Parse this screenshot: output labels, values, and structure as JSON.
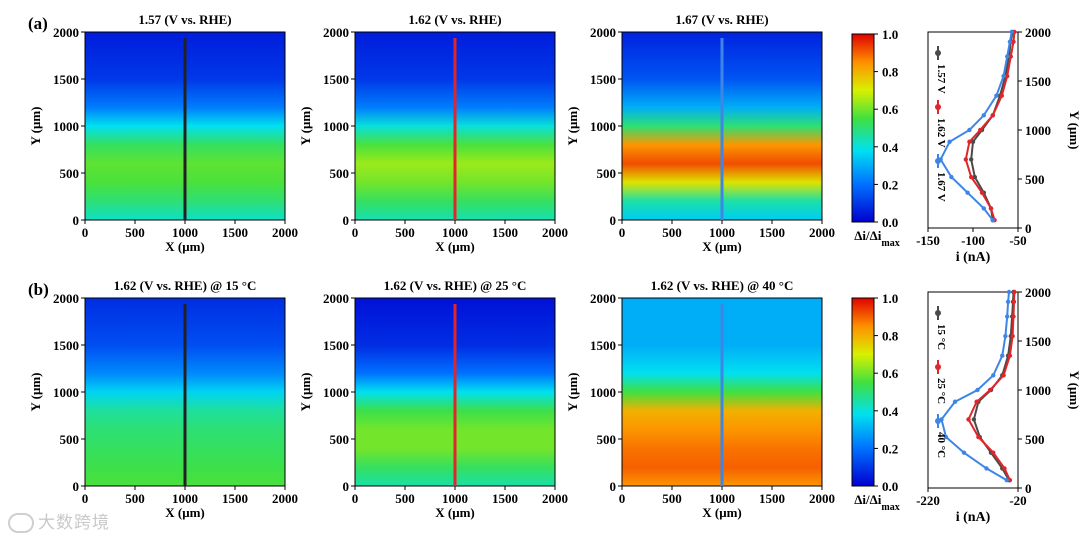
{
  "figure": {
    "watermark": "大数跨境",
    "map_panels": [
      {
        "label": "(a)",
        "title": "1.57 (V vs. RHE)",
        "line_color": "#222222"
      },
      {
        "title": "1.62 (V vs. RHE)",
        "line_color": "#e0262a"
      },
      {
        "title": "1.67 (V vs. RHE)",
        "line_color": "#3e86e6"
      },
      {
        "label": "(b)",
        "title": "1.62 (V vs. RHE) @ 15 °C",
        "line_color": "#222222"
      },
      {
        "title": "1.62 (V vs. RHE) @ 25 °C",
        "line_color": "#e0262a"
      },
      {
        "title": "1.62 (V vs. RHE) @ 40 °C",
        "line_color": "#3e86e6"
      }
    ],
    "colorbar": {
      "ticks": [
        "0.0",
        "0.2",
        "0.4",
        "0.6",
        "0.8",
        "1.0"
      ],
      "label": "Δi/Δi",
      "label_sub": "max"
    }
  },
  "chart_data": [
    {
      "type": "heatmap",
      "title": "1.57 (V vs. RHE)",
      "xlabel": "X (μm)",
      "ylabel": "Y (μm)",
      "xlim": [
        0,
        2000
      ],
      "ylim": [
        0,
        2000
      ],
      "xticks": [
        0,
        500,
        1000,
        1500,
        2000
      ],
      "yticks": [
        0,
        500,
        1000,
        1500,
        2000
      ],
      "profile_line_x": 1000,
      "mean_profile": {
        "y": [
          0,
          200,
          400,
          600,
          800,
          1000,
          1200,
          1500,
          2000
        ],
        "value": [
          0.42,
          0.5,
          0.56,
          0.58,
          0.52,
          0.38,
          0.22,
          0.1,
          0.05
        ]
      }
    },
    {
      "type": "heatmap",
      "title": "1.62 (V vs. RHE)",
      "xlabel": "X (μm)",
      "ylabel": "Y (μm)",
      "xlim": [
        0,
        2000
      ],
      "ylim": [
        0,
        2000
      ],
      "xticks": [
        0,
        500,
        1000,
        1500,
        2000
      ],
      "yticks": [
        0,
        500,
        1000,
        1500,
        2000
      ],
      "profile_line_x": 1000,
      "mean_profile": {
        "y": [
          0,
          200,
          400,
          600,
          800,
          1000,
          1200,
          1500,
          2000
        ],
        "value": [
          0.44,
          0.52,
          0.6,
          0.64,
          0.56,
          0.4,
          0.22,
          0.1,
          0.05
        ]
      }
    },
    {
      "type": "heatmap",
      "title": "1.67 (V vs. RHE)",
      "xlabel": "X (μm)",
      "ylabel": "Y (μm)",
      "xlim": [
        0,
        2000
      ],
      "ylim": [
        0,
        2000
      ],
      "xticks": [
        0,
        500,
        1000,
        1500,
        2000
      ],
      "yticks": [
        0,
        500,
        1000,
        1500,
        2000
      ],
      "profile_line_x": 1000,
      "mean_profile": {
        "y": [
          0,
          200,
          400,
          600,
          800,
          1000,
          1200,
          1500,
          2000
        ],
        "value": [
          0.35,
          0.45,
          0.72,
          0.92,
          0.84,
          0.5,
          0.3,
          0.15,
          0.06
        ]
      }
    },
    {
      "type": "heatmap",
      "title": "1.62 (V vs. RHE) @ 15 °C",
      "xlabel": "X (μm)",
      "ylabel": "Y (μm)",
      "xlim": [
        0,
        2000
      ],
      "ylim": [
        0,
        2000
      ],
      "xticks": [
        0,
        500,
        1000,
        1500,
        2000
      ],
      "yticks": [
        0,
        500,
        1000,
        1500,
        2000
      ],
      "profile_line_x": 1000,
      "mean_profile": {
        "y": [
          0,
          200,
          400,
          600,
          800,
          1000,
          1200,
          1500,
          2000
        ],
        "value": [
          0.56,
          0.54,
          0.52,
          0.5,
          0.46,
          0.36,
          0.24,
          0.14,
          0.08
        ]
      }
    },
    {
      "type": "heatmap",
      "title": "1.62 (V vs. RHE) @ 25 °C",
      "xlabel": "X (μm)",
      "ylabel": "Y (μm)",
      "xlim": [
        0,
        2000
      ],
      "ylim": [
        0,
        2000
      ],
      "xticks": [
        0,
        500,
        1000,
        1500,
        2000
      ],
      "yticks": [
        0,
        500,
        1000,
        1500,
        2000
      ],
      "profile_line_x": 1000,
      "mean_profile": {
        "y": [
          0,
          200,
          400,
          600,
          800,
          1000,
          1200,
          1500,
          2000
        ],
        "value": [
          0.45,
          0.52,
          0.6,
          0.6,
          0.54,
          0.38,
          0.2,
          0.08,
          0.03
        ]
      }
    },
    {
      "type": "heatmap",
      "title": "1.62 (V vs. RHE) @ 40 °C",
      "xlabel": "X (μm)",
      "ylabel": "Y (μm)",
      "xlim": [
        0,
        2000
      ],
      "ylim": [
        0,
        2000
      ],
      "xticks": [
        0,
        500,
        1000,
        1500,
        2000
      ],
      "yticks": [
        0,
        500,
        1000,
        1500,
        2000
      ],
      "profile_line_x": 1000,
      "mean_profile": {
        "y": [
          0,
          200,
          400,
          600,
          800,
          1000,
          1200,
          1500,
          2000
        ],
        "value": [
          0.84,
          0.9,
          0.88,
          0.84,
          0.8,
          0.55,
          0.38,
          0.3,
          0.3
        ]
      }
    },
    {
      "type": "line",
      "xlabel": "i (nA)",
      "ylabel": "Y (μm)",
      "xlim": [
        -150,
        -50
      ],
      "ylim": [
        0,
        2000
      ],
      "xticks": [
        -150,
        -100,
        -50
      ],
      "yticks": [
        0,
        500,
        1000,
        1500,
        2000
      ],
      "series": [
        {
          "name": "1.57 V",
          "color": "#4a4a4a",
          "x": [
            -78,
            -80,
            -88,
            -98,
            -102,
            -100,
            -90,
            -78,
            -70,
            -64,
            -60,
            -58,
            -56
          ],
          "y": [
            80,
            200,
            360,
            520,
            700,
            880,
            1000,
            1150,
            1350,
            1550,
            1750,
            1900,
            2000
          ]
        },
        {
          "name": "1.62 V",
          "color": "#e0262a",
          "x": [
            -76,
            -80,
            -90,
            -102,
            -108,
            -104,
            -92,
            -78,
            -68,
            -62,
            -58,
            -55,
            -54
          ],
          "y": [
            80,
            200,
            360,
            520,
            700,
            880,
            1000,
            1150,
            1350,
            1550,
            1750,
            1900,
            2000
          ]
        },
        {
          "name": "1.67 V",
          "color": "#3e86e6",
          "x": [
            -78,
            -88,
            -106,
            -124,
            -136,
            -126,
            -104,
            -88,
            -74,
            -66,
            -62,
            -59,
            -57
          ],
          "y": [
            80,
            200,
            360,
            520,
            700,
            880,
            1000,
            1150,
            1350,
            1550,
            1750,
            1900,
            2000
          ]
        }
      ]
    },
    {
      "type": "line",
      "xlabel": "i (nA)",
      "ylabel": "Y (μm)",
      "xlim": [
        -220,
        -20
      ],
      "ylim": [
        0,
        2000
      ],
      "xticks": [
        -220,
        -20
      ],
      "yticks": [
        0,
        500,
        1000,
        1500,
        2000
      ],
      "series": [
        {
          "name": "15 °C",
          "color": "#4a4a4a",
          "x": [
            -40,
            -55,
            -80,
            -105,
            -118,
            -108,
            -80,
            -55,
            -42,
            -36,
            -33,
            -31,
            -30
          ],
          "y": [
            80,
            200,
            360,
            520,
            700,
            880,
            1000,
            1150,
            1350,
            1550,
            1750,
            1900,
            2000
          ]
        },
        {
          "name": "25 °C",
          "color": "#e0262a",
          "x": [
            -38,
            -50,
            -75,
            -108,
            -130,
            -112,
            -82,
            -52,
            -38,
            -32,
            -30,
            -29,
            -28
          ],
          "y": [
            80,
            200,
            360,
            520,
            700,
            880,
            1000,
            1150,
            1350,
            1550,
            1750,
            1900,
            2000
          ]
        },
        {
          "name": "40 °C",
          "color": "#3e86e6",
          "x": [
            -45,
            -90,
            -140,
            -180,
            -190,
            -160,
            -110,
            -75,
            -55,
            -48,
            -44,
            -42,
            -40
          ],
          "y": [
            80,
            200,
            360,
            520,
            700,
            880,
            1000,
            1150,
            1350,
            1550,
            1750,
            1900,
            2000
          ]
        }
      ]
    }
  ]
}
